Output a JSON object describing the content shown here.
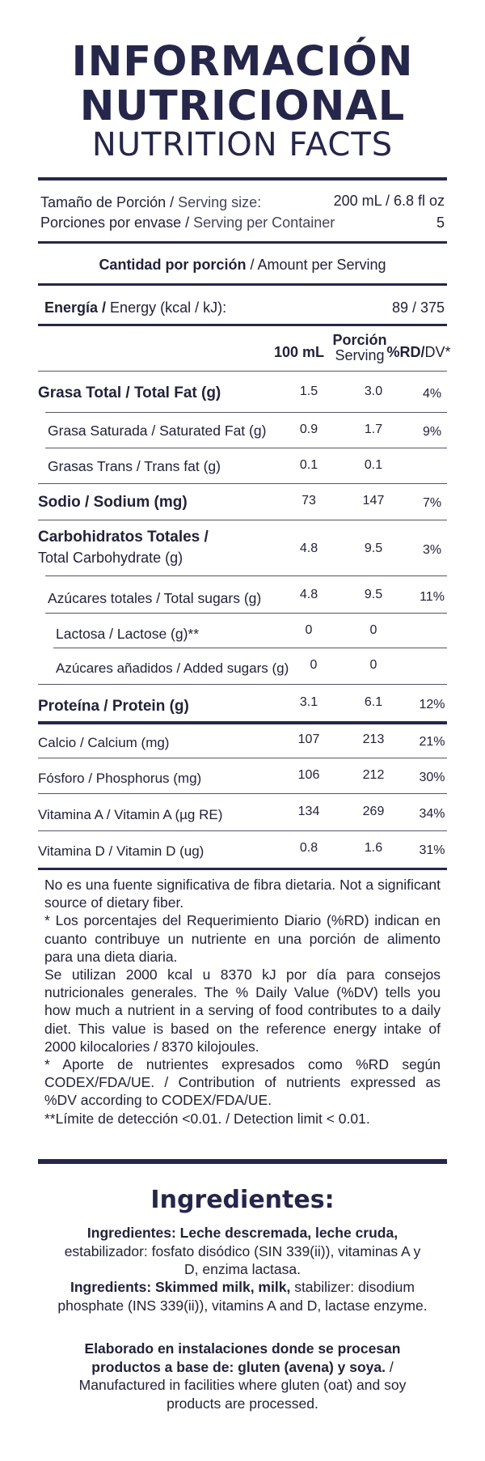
{
  "header": {
    "title_line1": "INFORMACIÓN",
    "title_line2": "NUTRICIONAL",
    "title_line3": "NUTRITION FACTS"
  },
  "serving": {
    "size_label_es": "Tamaño de Porción /",
    "size_label_en": "Serving size:",
    "size_value": "200 mL / 6.8 fl oz",
    "per_container_label_es": "Porciones por envase /",
    "per_container_label_en": "Serving per Container",
    "per_container_value": "5"
  },
  "amount_per_serving": {
    "label_es": "Cantidad por porción",
    "label_en": "/ Amount per Serving"
  },
  "energy": {
    "label_es": "Energía /",
    "label_en": "Energy (kcal / kJ):",
    "value": "89 / 375"
  },
  "columns": {
    "col1": "100 mL",
    "col2_line1": "Porción",
    "col2_line2": "Serving",
    "col3_bold": "%RD/",
    "col3_rest": "DV*"
  },
  "nutrients": [
    {
      "label": "Grasa Total / Total Fat (g)",
      "per100": "1.5",
      "serving": "3.0",
      "dv": "4%"
    },
    {
      "label": "Grasa Saturada / Saturated Fat (g)",
      "per100": "0.9",
      "serving": "1.7",
      "dv": "9%"
    },
    {
      "label": "Grasas Trans / Trans fat (g)",
      "per100": "0.1",
      "serving": "0.1",
      "dv": ""
    },
    {
      "label": "Sodio / Sodium (mg)",
      "per100": "73",
      "serving": "147",
      "dv": "7%"
    },
    {
      "label": "Carbohidratos Totales /",
      "label2": "Total Carbohydrate (g)",
      "per100": "4.8",
      "serving": "9.5",
      "dv": "3%"
    },
    {
      "label": "Azúcares totales / Total sugars (g)",
      "per100": "4.8",
      "serving": "9.5",
      "dv": "11%"
    },
    {
      "label": "Lactosa / Lactose (g)**",
      "per100": "0",
      "serving": "0",
      "dv": ""
    },
    {
      "label": "Azúcares añadidos / Added sugars (g)",
      "per100": "0",
      "serving": "0",
      "dv": ""
    },
    {
      "label": "Proteína / Protein (g)",
      "per100": "3.1",
      "serving": "6.1",
      "dv": "12%"
    },
    {
      "label": "Calcio / Calcium (mg)",
      "per100": "107",
      "serving": "213",
      "dv": "21%"
    },
    {
      "label": "Fósforo / Phosphorus (mg)",
      "per100": "106",
      "serving": "212",
      "dv": "30%"
    },
    {
      "label": "Vitamina A / Vitamin A (µg RE)",
      "per100": "134",
      "serving": "269",
      "dv": "34%"
    },
    {
      "label": "Vitamina D / Vitamin D (ug)",
      "per100": "0.8",
      "serving": "1.6",
      "dv": "31%"
    }
  ],
  "footnotes": {
    "p1": "No es una fuente significativa de fibra dietaria. Not a significant source of dietary fiber.",
    "p2": "* Los porcentajes del Requerimiento Diario (%RD) indican en cuanto contribuye un nutriente en una porción de alimento para una dieta diaria.",
    "p3": "Se utilizan 2000 kcal u 8370 kJ por día para consejos nutricionales generales. The % Daily Value (%DV) tells you how much a nutrient in a serving of food contributes to a daily diet. This value is based on the reference energy intake of 2000 kilocalories / 8370 kilojoules.",
    "p4": "* Aporte de nutrientes expresados como %RD según CODEX/FDA/UE. / Contribution of nutrients expressed as %DV according to CODEX/FDA/UE.",
    "p5": "**Límite de detección <0.01. / Detection limit < 0.01."
  },
  "ingredients": {
    "title": "Ingredientes:",
    "es_bold": "Ingredientes: Leche descremada, leche cruda,",
    "es_rest": "estabilizador: fosfato disódico (SIN 339(ii)), vitaminas A y D, enzima lactasa.",
    "en_bold": "Ingredients: Skimmed milk, milk,",
    "en_rest": "stabilizer: disodium phosphate (INS 339(ii)), vitamins A and D, lactase enzyme.",
    "facility_bold": "Elaborado en instalaciones donde se procesan productos a base de: gluten (avena) y soya.",
    "facility_rest": "/ Manufactured in facilities where gluten (oat) and soy products are processed."
  }
}
